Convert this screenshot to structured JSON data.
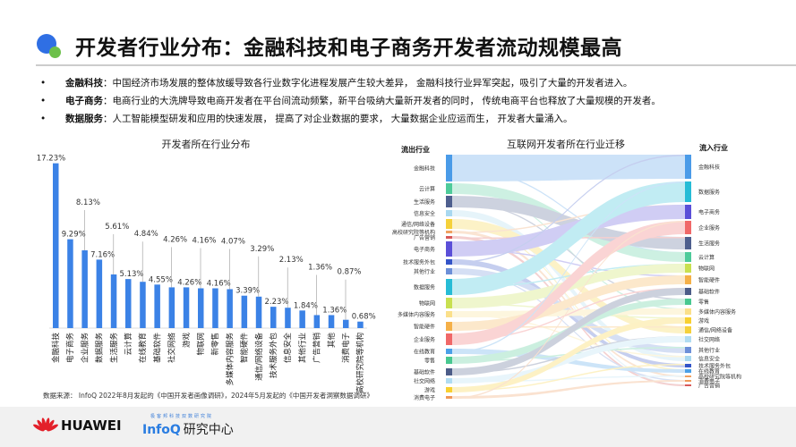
{
  "header": {
    "title": "开发者行业分布：金融科技和电子商务开发者流动规模最高"
  },
  "bullets": [
    {
      "term": "金融科技",
      "sep": "：",
      "text": "中国经济市场发展的整体放缓导致各行业数字化进程发展产生较大差异， 金融科技行业异军突起，吸引了大量的开发者进入。"
    },
    {
      "term": "电子商务",
      "sep": "：",
      "text": "电商行业的大洗牌导致电商开发者在平台间流动频繁，新平台吸纳大量新开发者的同时， 传统电商平台也释放了大量规模的开发者。"
    },
    {
      "term": "数据服务",
      "sep": "：",
      "text": "人工智能模型研发和应用的快速发展， 提高了对企业数据的要求， 大量数据企业应运而生， 开发者大量涌入。"
    }
  ],
  "chart_data": [
    {
      "type": "bar",
      "title": "开发者所在行业分布",
      "categories": [
        "金融科技",
        "电子商务",
        "企业服务",
        "数据服务",
        "生活服务",
        "云计算",
        "在线教育",
        "基础软件",
        "社交网络",
        "游戏",
        "物联网",
        "新零售",
        "多媒体内容服务",
        "智能硬件",
        "通信/网络设备",
        "技术服务外包",
        "信息安全",
        "其他行业",
        "广告营销",
        "其他",
        "消费电子",
        "高校研究院等机构"
      ],
      "values": [
        17.23,
        9.29,
        8.13,
        7.16,
        5.61,
        5.13,
        4.84,
        4.55,
        4.26,
        4.26,
        4.16,
        4.16,
        4.07,
        3.39,
        3.29,
        2.23,
        2.13,
        1.84,
        1.36,
        1.36,
        0.87,
        0.68
      ],
      "labels": [
        "17.23%",
        "9.29%",
        "8.13%",
        "7.16%",
        "5.61%",
        "5.13%",
        "4.84%",
        "4.55%",
        "4.26%",
        "4.26%",
        "4.16%",
        "4.16%",
        "4.07%",
        "3.39%",
        "3.29%",
        "2.23%",
        "2.13%",
        "1.84%",
        "1.36%",
        "1.36%",
        "0.87%",
        "0.68%"
      ],
      "color": "#3b82e6",
      "grid": false
    },
    {
      "type": "sankey",
      "title": "互联网开发者所在行业迁移",
      "left_title": "流出行业",
      "right_title": "流入行业",
      "left_nodes": [
        {
          "name": "金融科技",
          "color": "#4a9be8"
        },
        {
          "name": "云计算",
          "color": "#4ecb9a"
        },
        {
          "name": "生活服务",
          "color": "#4e5f8e"
        },
        {
          "name": "信息安全",
          "color": "#a8d8f0"
        },
        {
          "name": "通信/网络设备",
          "color": "#f5d13a"
        },
        {
          "name": "高校研究院等机构",
          "color": "#f0a060"
        },
        {
          "name": "广告营销",
          "color": "#d85858"
        },
        {
          "name": "电子商务",
          "color": "#5b4fd8"
        },
        {
          "name": "技术服务外包",
          "color": "#3454c8"
        },
        {
          "name": "其他行业",
          "color": "#6c8fd8"
        },
        {
          "name": "数据服务",
          "color": "#26bcd6"
        },
        {
          "name": "物联网",
          "color": "#c8e050"
        },
        {
          "name": "多媒体内容服务",
          "color": "#fbe08a"
        },
        {
          "name": "智能硬件",
          "color": "#f5b048"
        },
        {
          "name": "企业服务",
          "color": "#f06868"
        },
        {
          "name": "在线教育",
          "color": "#4aa0e8"
        },
        {
          "name": "零售",
          "color": "#48c890"
        },
        {
          "name": "基础软件",
          "color": "#4c5c88"
        },
        {
          "name": "社交网络",
          "color": "#b0dcf2"
        },
        {
          "name": "游戏",
          "color": "#f8d030"
        },
        {
          "name": "消费电子",
          "color": "#f09858"
        }
      ],
      "right_nodes": [
        {
          "name": "金融科技",
          "color": "#4a9be8"
        },
        {
          "name": "数据服务",
          "color": "#26bcd6"
        },
        {
          "name": "电子商务",
          "color": "#5b4fd8"
        },
        {
          "name": "企业服务",
          "color": "#f06868"
        },
        {
          "name": "生活服务",
          "color": "#4e5f8e"
        },
        {
          "name": "云计算",
          "color": "#4ecb9a"
        },
        {
          "name": "物联网",
          "color": "#c8e050"
        },
        {
          "name": "智能硬件",
          "color": "#f5b048"
        },
        {
          "name": "基础软件",
          "color": "#4c5c88"
        },
        {
          "name": "零售",
          "color": "#48c890"
        },
        {
          "name": "多媒体内容服务",
          "color": "#fbe08a"
        },
        {
          "name": "游戏",
          "color": "#f8d030"
        },
        {
          "name": "通信/网络设备",
          "color": "#f5d13a"
        },
        {
          "name": "社交网络",
          "color": "#b0dcf2"
        },
        {
          "name": "其他行业",
          "color": "#6c8fd8"
        },
        {
          "name": "信息安全",
          "color": "#a8d8f0"
        },
        {
          "name": "技术服务外包",
          "color": "#3454c8"
        },
        {
          "name": "在线教育",
          "color": "#4aa0e8"
        },
        {
          "name": "高校研究院等机构",
          "color": "#f0a060"
        },
        {
          "name": "消费电子",
          "color": "#f09858"
        },
        {
          "name": "广告营销",
          "color": "#d85858"
        }
      ]
    }
  ],
  "source": "数据来源： InfoQ 2022年8月发起的《中国开发者画像调研》，2024年5月发起的《中国开发者洞察数据调研》",
  "footer": {
    "huawei": "HUAWEI",
    "infoq": "InfoQ",
    "infoq_suffix": "研究中心",
    "tagline": "极客邦科技双数研究院"
  }
}
